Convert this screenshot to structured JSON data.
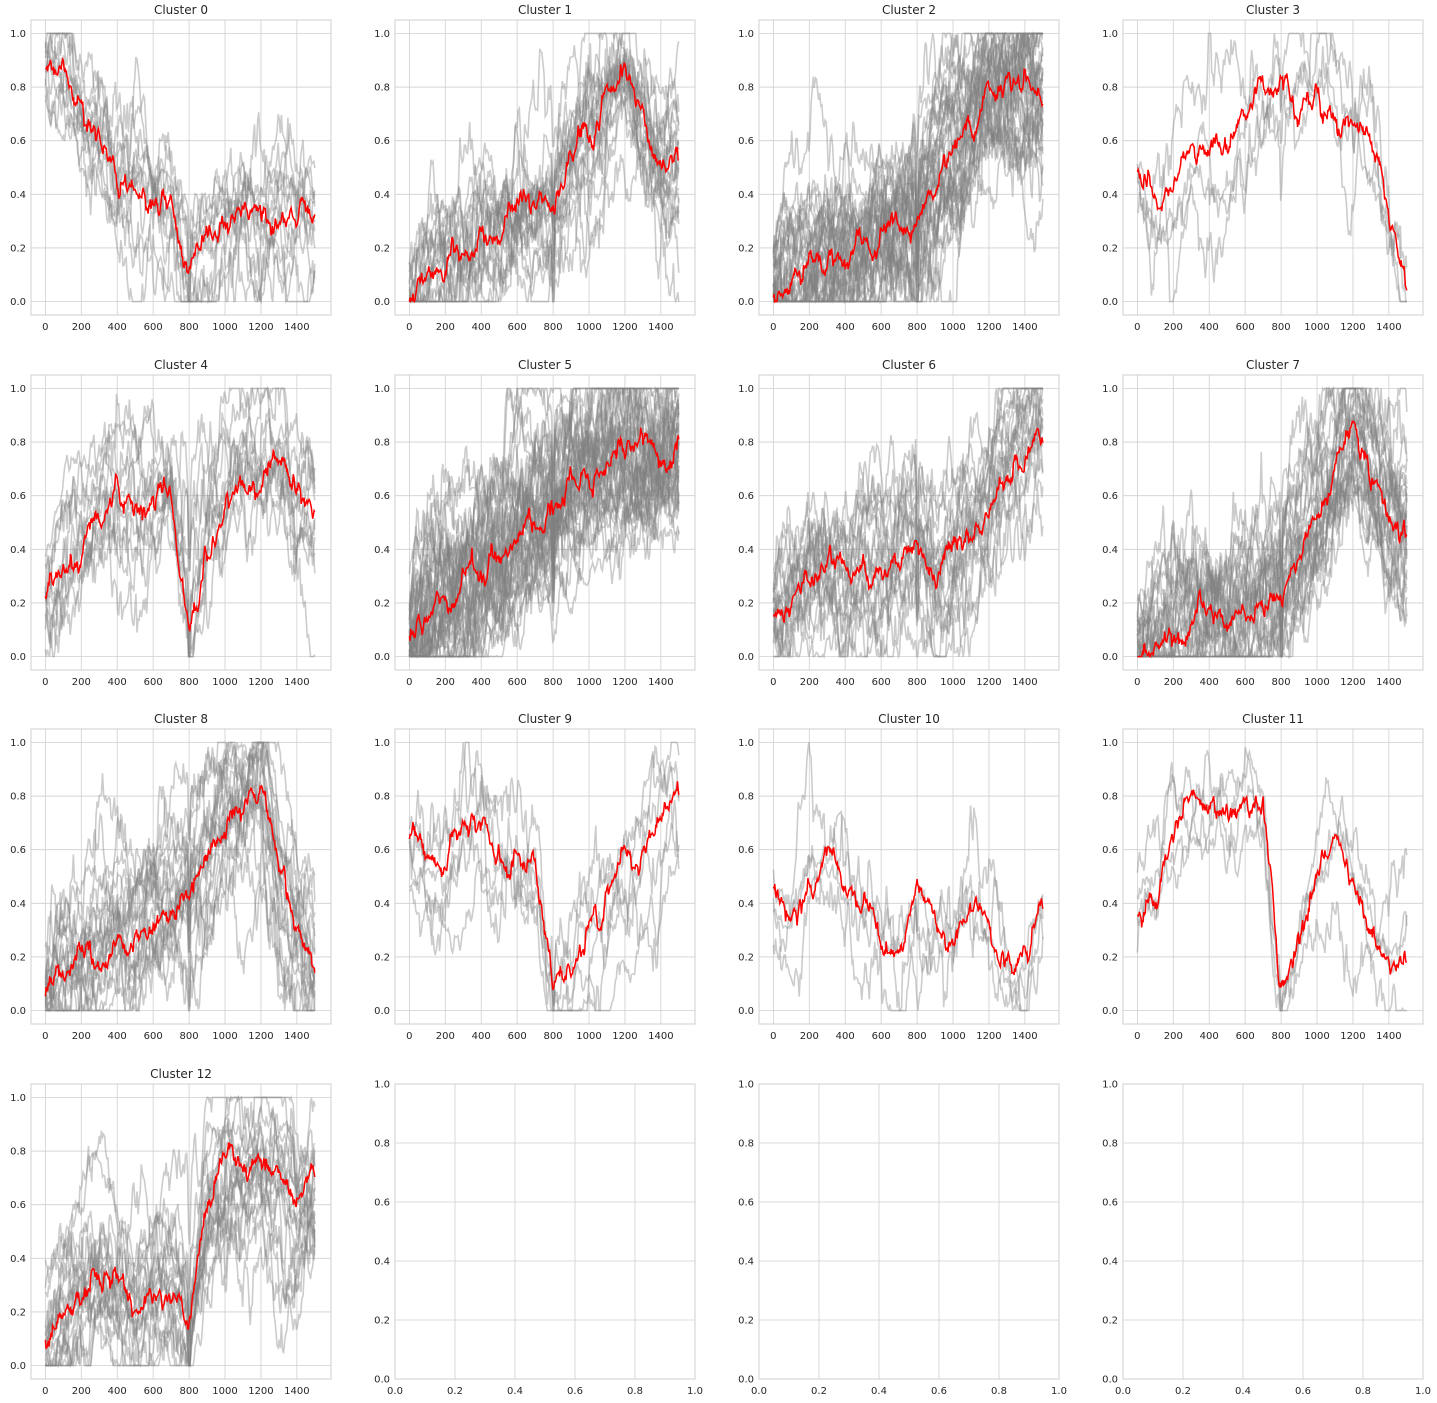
{
  "chart_data": {
    "type": "line",
    "layout": "4x4 grid of line subplots",
    "member_color": "#808080",
    "centroid_color": "#ff0000",
    "grid": true,
    "panels": [
      {
        "title": "Cluster 0",
        "xlim": [
          -80,
          1590
        ],
        "ylim": [
          -0.05,
          1.05
        ],
        "xticks": [
          0,
          200,
          400,
          600,
          800,
          1000,
          1200,
          1400
        ],
        "yticks": [
          0.0,
          0.2,
          0.4,
          0.6,
          0.8,
          1.0
        ],
        "n_members": 12,
        "x": [
          0,
          100,
          200,
          300,
          400,
          500,
          600,
          700,
          800,
          900,
          1000,
          1100,
          1200,
          1300,
          1400,
          1500
        ],
        "centroid": [
          0.86,
          0.88,
          0.72,
          0.62,
          0.47,
          0.4,
          0.32,
          0.31,
          0.1,
          0.18,
          0.3,
          0.34,
          0.34,
          0.35,
          0.27,
          0.34
        ]
      },
      {
        "title": "Cluster 1",
        "xlim": [
          -80,
          1590
        ],
        "ylim": [
          -0.05,
          1.05
        ],
        "xticks": [
          0,
          200,
          400,
          600,
          800,
          1000,
          1200,
          1400
        ],
        "yticks": [
          0.0,
          0.2,
          0.4,
          0.6,
          0.8,
          1.0
        ],
        "n_members": 20,
        "x": [
          0,
          100,
          200,
          300,
          400,
          500,
          600,
          700,
          800,
          900,
          1000,
          1100,
          1200,
          1300,
          1400,
          1500
        ],
        "centroid": [
          0.02,
          0.07,
          0.1,
          0.15,
          0.24,
          0.23,
          0.32,
          0.36,
          0.4,
          0.56,
          0.67,
          0.75,
          0.9,
          0.7,
          0.52,
          0.5
        ]
      },
      {
        "title": "Cluster 2",
        "xlim": [
          -80,
          1590
        ],
        "ylim": [
          -0.05,
          1.05
        ],
        "xticks": [
          0,
          200,
          400,
          600,
          800,
          1000,
          1200,
          1400
        ],
        "yticks": [
          0.0,
          0.2,
          0.4,
          0.6,
          0.8,
          1.0
        ],
        "n_members": 40,
        "x": [
          0,
          100,
          200,
          300,
          400,
          500,
          600,
          700,
          800,
          900,
          1000,
          1100,
          1200,
          1300,
          1400,
          1500
        ],
        "centroid": [
          0.04,
          0.06,
          0.09,
          0.13,
          0.16,
          0.19,
          0.24,
          0.28,
          0.3,
          0.45,
          0.55,
          0.66,
          0.8,
          0.78,
          0.8,
          0.8
        ]
      },
      {
        "title": "Cluster 3",
        "xlim": [
          -80,
          1590
        ],
        "ylim": [
          -0.05,
          1.05
        ],
        "xticks": [
          0,
          200,
          400,
          600,
          800,
          1000,
          1200,
          1400
        ],
        "yticks": [
          0.0,
          0.2,
          0.4,
          0.6,
          0.8,
          1.0
        ],
        "n_members": 4,
        "x": [
          0,
          100,
          200,
          300,
          400,
          500,
          600,
          700,
          800,
          900,
          1000,
          1100,
          1200,
          1300,
          1400,
          1500
        ],
        "centroid": [
          0.48,
          0.36,
          0.4,
          0.55,
          0.6,
          0.62,
          0.7,
          0.8,
          0.78,
          0.72,
          0.8,
          0.76,
          0.66,
          0.6,
          0.35,
          0.08
        ]
      },
      {
        "title": "Cluster 4",
        "xlim": [
          -80,
          1590
        ],
        "ylim": [
          -0.05,
          1.05
        ],
        "xticks": [
          0,
          200,
          400,
          600,
          800,
          1000,
          1200,
          1400
        ],
        "yticks": [
          0.0,
          0.2,
          0.4,
          0.6,
          0.8,
          1.0
        ],
        "n_members": 12,
        "x": [
          0,
          100,
          200,
          300,
          400,
          500,
          600,
          700,
          800,
          900,
          1000,
          1100,
          1200,
          1300,
          1400,
          1500
        ],
        "centroid": [
          0.2,
          0.32,
          0.42,
          0.52,
          0.58,
          0.5,
          0.55,
          0.6,
          0.12,
          0.38,
          0.55,
          0.66,
          0.72,
          0.78,
          0.6,
          0.58
        ]
      },
      {
        "title": "Cluster 5",
        "xlim": [
          -80,
          1590
        ],
        "ylim": [
          -0.05,
          1.05
        ],
        "xticks": [
          0,
          200,
          400,
          600,
          800,
          1000,
          1200,
          1400
        ],
        "yticks": [
          0.0,
          0.2,
          0.4,
          0.6,
          0.8,
          1.0
        ],
        "n_members": 45,
        "x": [
          0,
          100,
          200,
          300,
          400,
          500,
          600,
          700,
          800,
          900,
          1000,
          1100,
          1200,
          1300,
          1400,
          1500
        ],
        "centroid": [
          0.06,
          0.13,
          0.18,
          0.24,
          0.28,
          0.34,
          0.44,
          0.52,
          0.58,
          0.66,
          0.7,
          0.74,
          0.76,
          0.77,
          0.76,
          0.8
        ]
      },
      {
        "title": "Cluster 6",
        "xlim": [
          -80,
          1590
        ],
        "ylim": [
          -0.05,
          1.05
        ],
        "xticks": [
          0,
          200,
          400,
          600,
          800,
          1000,
          1200,
          1400
        ],
        "yticks": [
          0.0,
          0.2,
          0.4,
          0.6,
          0.8,
          1.0
        ],
        "n_members": 20,
        "x": [
          0,
          100,
          200,
          300,
          400,
          500,
          600,
          700,
          800,
          900,
          1000,
          1100,
          1200,
          1300,
          1400,
          1500
        ],
        "centroid": [
          0.17,
          0.2,
          0.25,
          0.32,
          0.3,
          0.33,
          0.31,
          0.34,
          0.4,
          0.28,
          0.36,
          0.46,
          0.52,
          0.72,
          0.78,
          0.85
        ]
      },
      {
        "title": "Cluster 7",
        "xlim": [
          -80,
          1590
        ],
        "ylim": [
          -0.05,
          1.05
        ],
        "xticks": [
          0,
          200,
          400,
          600,
          800,
          1000,
          1200,
          1400
        ],
        "yticks": [
          0.0,
          0.2,
          0.4,
          0.6,
          0.8,
          1.0
        ],
        "n_members": 30,
        "x": [
          0,
          100,
          200,
          300,
          400,
          500,
          600,
          700,
          800,
          900,
          1000,
          1100,
          1200,
          1300,
          1400,
          1500
        ],
        "centroid": [
          0.02,
          0.05,
          0.08,
          0.11,
          0.14,
          0.1,
          0.15,
          0.19,
          0.26,
          0.4,
          0.55,
          0.68,
          0.86,
          0.68,
          0.55,
          0.5
        ]
      },
      {
        "title": "Cluster 8",
        "xlim": [
          -80,
          1590
        ],
        "ylim": [
          -0.05,
          1.05
        ],
        "xticks": [
          0,
          200,
          400,
          600,
          800,
          1000,
          1200,
          1400
        ],
        "yticks": [
          0.0,
          0.2,
          0.4,
          0.6,
          0.8,
          1.0
        ],
        "n_members": 20,
        "x": [
          0,
          100,
          200,
          300,
          400,
          500,
          600,
          700,
          800,
          900,
          1000,
          1100,
          1200,
          1300,
          1400,
          1500
        ],
        "centroid": [
          0.06,
          0.15,
          0.18,
          0.22,
          0.26,
          0.24,
          0.3,
          0.34,
          0.4,
          0.56,
          0.7,
          0.78,
          0.86,
          0.52,
          0.3,
          0.18
        ]
      },
      {
        "title": "Cluster 9",
        "xlim": [
          -80,
          1590
        ],
        "ylim": [
          -0.05,
          1.05
        ],
        "xticks": [
          0,
          200,
          400,
          600,
          800,
          1000,
          1200,
          1400
        ],
        "yticks": [
          0.0,
          0.2,
          0.4,
          0.6,
          0.8,
          1.0
        ],
        "n_members": 6,
        "x": [
          0,
          100,
          200,
          300,
          400,
          500,
          600,
          700,
          800,
          900,
          1000,
          1100,
          1200,
          1300,
          1400,
          1500
        ],
        "centroid": [
          0.62,
          0.58,
          0.55,
          0.66,
          0.7,
          0.6,
          0.56,
          0.52,
          0.1,
          0.18,
          0.3,
          0.4,
          0.5,
          0.6,
          0.72,
          0.8
        ]
      },
      {
        "title": "Cluster 10",
        "xlim": [
          -80,
          1590
        ],
        "ylim": [
          -0.05,
          1.05
        ],
        "xticks": [
          0,
          200,
          400,
          600,
          800,
          1000,
          1200,
          1400
        ],
        "yticks": [
          0.0,
          0.2,
          0.4,
          0.6,
          0.8,
          1.0
        ],
        "n_members": 4,
        "x": [
          0,
          100,
          200,
          300,
          400,
          500,
          600,
          700,
          800,
          900,
          1000,
          1100,
          1200,
          1300,
          1400,
          1500
        ],
        "centroid": [
          0.44,
          0.3,
          0.5,
          0.56,
          0.48,
          0.4,
          0.28,
          0.24,
          0.48,
          0.32,
          0.24,
          0.42,
          0.3,
          0.14,
          0.12,
          0.42
        ]
      },
      {
        "title": "Cluster 11",
        "xlim": [
          -80,
          1590
        ],
        "ylim": [
          -0.05,
          1.05
        ],
        "xticks": [
          0,
          200,
          400,
          600,
          800,
          1000,
          1200,
          1400
        ],
        "yticks": [
          0.0,
          0.2,
          0.4,
          0.6,
          0.8,
          1.0
        ],
        "n_members": 4,
        "x": [
          0,
          100,
          200,
          300,
          400,
          500,
          600,
          700,
          800,
          900,
          1000,
          1100,
          1200,
          1300,
          1400,
          1500
        ],
        "centroid": [
          0.36,
          0.42,
          0.66,
          0.78,
          0.74,
          0.7,
          0.76,
          0.78,
          0.12,
          0.28,
          0.5,
          0.6,
          0.52,
          0.34,
          0.18,
          0.24
        ]
      },
      {
        "title": "Cluster 12",
        "xlim": [
          -80,
          1590
        ],
        "ylim": [
          -0.05,
          1.05
        ],
        "xticks": [
          0,
          200,
          400,
          600,
          800,
          1000,
          1200,
          1400
        ],
        "yticks": [
          0.0,
          0.2,
          0.4,
          0.6,
          0.8,
          1.0
        ],
        "n_members": 20,
        "x": [
          0,
          100,
          200,
          300,
          400,
          500,
          600,
          700,
          800,
          900,
          1000,
          1100,
          1200,
          1300,
          1400,
          1500
        ],
        "centroid": [
          0.12,
          0.18,
          0.28,
          0.4,
          0.34,
          0.2,
          0.26,
          0.3,
          0.18,
          0.6,
          0.76,
          0.8,
          0.82,
          0.72,
          0.58,
          0.66
        ]
      },
      {
        "title": "",
        "empty": true,
        "xlim": [
          0,
          1
        ],
        "ylim": [
          0,
          1
        ],
        "xticks": [
          0.0,
          0.2,
          0.4,
          0.6,
          0.8,
          1.0
        ],
        "yticks": [
          0.0,
          0.2,
          0.4,
          0.6,
          0.8,
          1.0
        ]
      },
      {
        "title": "",
        "empty": true,
        "xlim": [
          0,
          1
        ],
        "ylim": [
          0,
          1
        ],
        "xticks": [
          0.0,
          0.2,
          0.4,
          0.6,
          0.8,
          1.0
        ],
        "yticks": [
          0.0,
          0.2,
          0.4,
          0.6,
          0.8,
          1.0
        ]
      },
      {
        "title": "",
        "empty": true,
        "xlim": [
          0,
          1
        ],
        "ylim": [
          0,
          1
        ],
        "xticks": [
          0.0,
          0.2,
          0.4,
          0.6,
          0.8,
          1.0
        ],
        "yticks": [
          0.0,
          0.2,
          0.4,
          0.6,
          0.8,
          1.0
        ]
      }
    ]
  }
}
